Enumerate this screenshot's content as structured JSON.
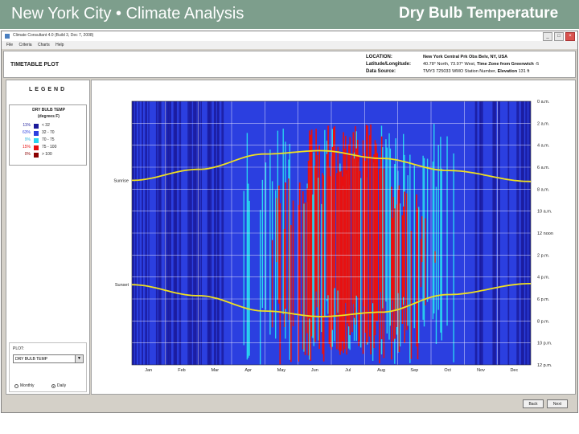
{
  "slide": {
    "title_left": "New York City • Climate Analysis",
    "title_right": "Dry Bulb Temperature"
  },
  "window": {
    "title": "Climate Consultant 4.0 (Build 3, Dec 7, 2008)",
    "controls": [
      "_",
      "□",
      "×"
    ]
  },
  "menu": [
    "File",
    "Criteria",
    "Charts",
    "Help"
  ],
  "header": {
    "plot_type": "TIMETABLE PLOT",
    "location_label": "LOCATION:",
    "location_value": "New York Central Prk Obs Belv, NY, USA",
    "latlong_label": "Latitude/Longitude:",
    "latlong_value": "40.78° North, 73.97° West,",
    "timezone_label": "Time Zone from Greenwich",
    "timezone_value": "-5",
    "source_label": "Data Source:",
    "source_value": "TMY3     725033 WMO Station Number,",
    "elevation_label": "Elevation",
    "elevation_value": "131 ft"
  },
  "legend": {
    "title": "LEGEND",
    "heading_1": "DRY BULB TEMP",
    "heading_2": "(degrees F)",
    "items": [
      {
        "pct": "11%",
        "range": "< 32",
        "color": "#1a1a9a",
        "pct_color": "#1a1a9a"
      },
      {
        "pct": "63%",
        "range": "32  -  70",
        "color": "#2b3fe0",
        "pct_color": "#2b3fe0"
      },
      {
        "pct": "9%",
        "range": "70  -  75",
        "color": "#29d6f0",
        "pct_color": "#29b6e0"
      },
      {
        "pct": "15%",
        "range": "75  -  100",
        "color": "#e81010",
        "pct_color": "#e81010"
      },
      {
        "pct": "0%",
        "range": "> 100",
        "color": "#8b0000",
        "pct_color": "#8b0000"
      }
    ]
  },
  "plot_select": {
    "label": "PLOT:",
    "value": "DRY BULB TEMP",
    "radio_monthly": "Monthly",
    "radio_daily": "Daily",
    "monthly_selected": false,
    "daily_selected": true
  },
  "buttons": {
    "back": "Back",
    "next": "Next"
  },
  "chart_data": {
    "type": "heatmap",
    "title": "",
    "xlabel": "",
    "ylabel": "",
    "x_categories": [
      "Jan",
      "Feb",
      "Mar",
      "Apr",
      "May",
      "Jun",
      "Jul",
      "Aug",
      "Sep",
      "Oct",
      "Nov",
      "Dec"
    ],
    "y_tick_labels": [
      "0 a.m.",
      "2 a.m.",
      "4 a.m.",
      "6 a.m.",
      "8 a.m.",
      "10 a.m.",
      "12 noon",
      "2 p.m.",
      "4 p.m.",
      "6 p.m.",
      "8 p.m.",
      "10 p.m.",
      "12 p.m."
    ],
    "y_range_hours": [
      0,
      24
    ],
    "curve_labels": {
      "sunrise": "Sunrise",
      "sunset": "Sunset"
    },
    "sunrise_hours": [
      {
        "month": 0,
        "hour": 7.2
      },
      {
        "month": 2,
        "hour": 6.2
      },
      {
        "month": 4,
        "hour": 4.8
      },
      {
        "month": 5.7,
        "hour": 4.5
      },
      {
        "month": 7.5,
        "hour": 5.2
      },
      {
        "month": 9.5,
        "hour": 6.3
      },
      {
        "month": 12,
        "hour": 7.3
      }
    ],
    "sunset_hours": [
      {
        "month": 0,
        "hour": 16.7
      },
      {
        "month": 2,
        "hour": 17.7
      },
      {
        "month": 4,
        "hour": 19.1
      },
      {
        "month": 5.7,
        "hour": 19.6
      },
      {
        "month": 7.5,
        "hour": 19.2
      },
      {
        "month": 9.5,
        "hour": 17.6
      },
      {
        "month": 12,
        "hour": 16.6
      }
    ],
    "colors": {
      "below_32": "#1a1a9a",
      "32_70": "#2b3fe0",
      "70_75": "#29d6f0",
      "75_100": "#e81010",
      "above_100": "#8b0000",
      "curve": "#f0e020"
    },
    "grid": true
  }
}
